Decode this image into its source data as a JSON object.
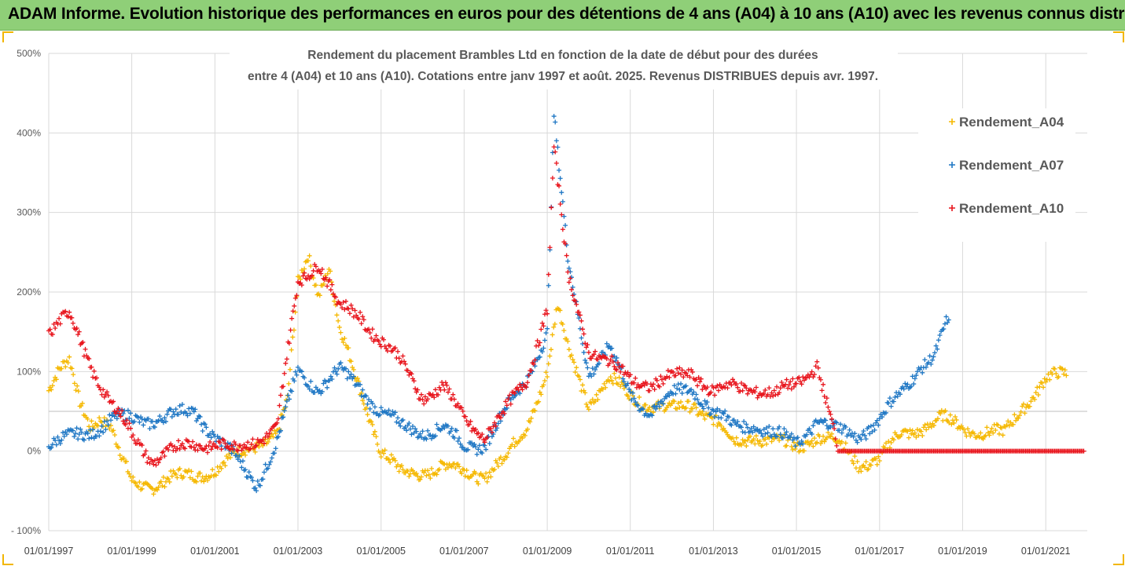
{
  "banner": {
    "title": "ADAM Informe. Evolution historique des performances en euros pour des détentions de 4 ans (A04) à 10 ans (A10) avec les revenus connus distribués",
    "background": "#8fcf78"
  },
  "chart_data": {
    "type": "scatter",
    "title_line1": "Rendement du placement Brambles Ltd en fonction de la date de début pour des durées",
    "title_line2": "entre 4 (A04) et 10 ans (A10). Cotations entre janv 1997 et août. 2025. Revenus DISTRIBUES depuis avr. 1997.",
    "xlabel": "",
    "ylabel": "",
    "x_axis_type": "date",
    "xlim": [
      "1997-01-01",
      "2022-01-01"
    ],
    "ylim": [
      -100,
      500
    ],
    "y_unit": "%",
    "y_ticks": [
      "500%",
      "400%",
      "300%",
      "200%",
      "100%",
      "0%",
      "- 100%"
    ],
    "x_ticks": [
      "01/01/1997",
      "01/01/1999",
      "01/01/2001",
      "01/01/2003",
      "01/01/2005",
      "01/01/2007",
      "01/01/2009",
      "01/01/2011",
      "01/01/2013",
      "01/01/2015",
      "01/01/2017",
      "01/01/2019",
      "01/01/2021"
    ],
    "reference_line_y": 50,
    "grid": {
      "vertical": true,
      "horizontal": true
    },
    "legend_position": "right",
    "marker": "plus",
    "series": [
      {
        "name": "Rendement_A04",
        "color": "#f5b800",
        "points": [
          [
            "1997-01-01",
            80
          ],
          [
            "1997-04-01",
            100
          ],
          [
            "1997-07-01",
            110
          ],
          [
            "1997-10-01",
            60
          ],
          [
            "1998-01-01",
            35
          ],
          [
            "1998-04-01",
            45
          ],
          [
            "1998-07-01",
            30
          ],
          [
            "1998-10-01",
            -10
          ],
          [
            "1999-01-01",
            -40
          ],
          [
            "1999-07-01",
            -42
          ],
          [
            "2000-01-01",
            -35
          ],
          [
            "2000-07-01",
            -30
          ],
          [
            "2001-01-01",
            -22
          ],
          [
            "2001-07-01",
            -8
          ],
          [
            "2002-01-01",
            10
          ],
          [
            "2002-07-01",
            20
          ],
          [
            "2002-10-01",
            60
          ],
          [
            "2003-01-01",
            210
          ],
          [
            "2003-04-01",
            250
          ],
          [
            "2003-07-01",
            200
          ],
          [
            "2003-10-01",
            230
          ],
          [
            "2004-01-01",
            150
          ],
          [
            "2004-07-01",
            80
          ],
          [
            "2005-01-01",
            0
          ],
          [
            "2005-07-01",
            -30
          ],
          [
            "2006-01-01",
            -25
          ],
          [
            "2006-07-01",
            -20
          ],
          [
            "2007-01-01",
            -25
          ],
          [
            "2007-07-01",
            -30
          ],
          [
            "2008-01-01",
            -10
          ],
          [
            "2008-07-01",
            30
          ],
          [
            "2009-01-01",
            100
          ],
          [
            "2009-04-01",
            180
          ],
          [
            "2009-07-01",
            130
          ],
          [
            "2010-01-01",
            60
          ],
          [
            "2010-07-01",
            90
          ],
          [
            "2011-01-01",
            70
          ],
          [
            "2011-07-01",
            60
          ],
          [
            "2012-01-01",
            50
          ],
          [
            "2012-07-01",
            60
          ],
          [
            "2013-01-01",
            40
          ],
          [
            "2013-07-01",
            10
          ],
          [
            "2014-01-01",
            20
          ],
          [
            "2014-07-01",
            10
          ],
          [
            "2015-01-01",
            5
          ],
          [
            "2015-07-01",
            20
          ],
          [
            "2016-01-01",
            10
          ],
          [
            "2016-07-01",
            -15
          ],
          [
            "2017-01-01",
            -10
          ],
          [
            "2017-07-01",
            20
          ],
          [
            "2018-01-01",
            30
          ],
          [
            "2018-07-01",
            40
          ],
          [
            "2019-01-01",
            30
          ],
          [
            "2019-07-01",
            25
          ],
          [
            "2020-01-01",
            20
          ],
          [
            "2020-07-01",
            60
          ],
          [
            "2021-01-01",
            90
          ],
          [
            "2021-07-01",
            95
          ]
        ]
      },
      {
        "name": "Rendement_A07",
        "color": "#1f77c4",
        "points": [
          [
            "1997-01-01",
            10
          ],
          [
            "1997-07-01",
            15
          ],
          [
            "1998-01-01",
            25
          ],
          [
            "1998-07-01",
            40
          ],
          [
            "1999-01-01",
            40
          ],
          [
            "1999-07-01",
            40
          ],
          [
            "2000-01-01",
            45
          ],
          [
            "2000-07-01",
            50
          ],
          [
            "2001-01-01",
            20
          ],
          [
            "2001-07-01",
            -10
          ],
          [
            "2002-01-01",
            -40
          ],
          [
            "2002-07-01",
            10
          ],
          [
            "2003-01-01",
            100
          ],
          [
            "2003-07-01",
            80
          ],
          [
            "2004-01-01",
            100
          ],
          [
            "2004-07-01",
            80
          ],
          [
            "2005-01-01",
            50
          ],
          [
            "2005-07-01",
            30
          ],
          [
            "2006-01-01",
            25
          ],
          [
            "2006-07-01",
            30
          ],
          [
            "2007-01-01",
            5
          ],
          [
            "2007-07-01",
            10
          ],
          [
            "2008-01-01",
            50
          ],
          [
            "2008-07-01",
            90
          ],
          [
            "2009-01-01",
            150
          ],
          [
            "2009-03-01",
            420
          ],
          [
            "2009-07-01",
            240
          ],
          [
            "2010-01-01",
            100
          ],
          [
            "2010-07-01",
            130
          ],
          [
            "2011-01-01",
            70
          ],
          [
            "2011-07-01",
            50
          ],
          [
            "2012-01-01",
            70
          ],
          [
            "2012-07-01",
            80
          ],
          [
            "2013-01-01",
            50
          ],
          [
            "2013-07-01",
            30
          ],
          [
            "2014-01-01",
            35
          ],
          [
            "2014-07-01",
            20
          ],
          [
            "2015-01-01",
            10
          ],
          [
            "2015-07-01",
            40
          ],
          [
            "2016-01-01",
            25
          ],
          [
            "2016-07-01",
            20
          ],
          [
            "2017-01-01",
            40
          ],
          [
            "2017-07-01",
            70
          ],
          [
            "2018-01-01",
            110
          ],
          [
            "2018-05-01",
            120
          ],
          [
            "2018-09-01",
            165
          ]
        ]
      },
      {
        "name": "Rendement_A10",
        "color": "#e8141c",
        "points": [
          [
            "1997-01-01",
            150
          ],
          [
            "1997-07-01",
            170
          ],
          [
            "1998-01-01",
            110
          ],
          [
            "1998-07-01",
            60
          ],
          [
            "1999-01-01",
            20
          ],
          [
            "1999-07-01",
            -10
          ],
          [
            "2000-01-01",
            0
          ],
          [
            "2000-07-01",
            10
          ],
          [
            "2001-01-01",
            10
          ],
          [
            "2001-07-01",
            0
          ],
          [
            "2002-01-01",
            15
          ],
          [
            "2002-07-01",
            30
          ],
          [
            "2003-01-01",
            210
          ],
          [
            "2003-07-01",
            240
          ],
          [
            "2004-01-01",
            180
          ],
          [
            "2004-07-01",
            170
          ],
          [
            "2005-01-01",
            140
          ],
          [
            "2005-07-01",
            110
          ],
          [
            "2006-01-01",
            70
          ],
          [
            "2006-07-01",
            80
          ],
          [
            "2007-01-01",
            40
          ],
          [
            "2007-07-01",
            20
          ],
          [
            "2008-01-01",
            50
          ],
          [
            "2008-07-01",
            90
          ],
          [
            "2009-01-01",
            180
          ],
          [
            "2009-03-01",
            380
          ],
          [
            "2009-07-01",
            220
          ],
          [
            "2010-01-01",
            130
          ],
          [
            "2010-07-01",
            110
          ],
          [
            "2011-01-01",
            90
          ],
          [
            "2011-07-01",
            85
          ],
          [
            "2012-01-01",
            90
          ],
          [
            "2012-07-01",
            100
          ],
          [
            "2013-01-01",
            75
          ],
          [
            "2013-07-01",
            80
          ],
          [
            "2014-01-01",
            80
          ],
          [
            "2014-07-01",
            70
          ],
          [
            "2015-01-01",
            85
          ],
          [
            "2015-07-01",
            110
          ],
          [
            "2016-01-01",
            0
          ],
          [
            "2018-01-01",
            0
          ],
          [
            "2020-01-01",
            0
          ],
          [
            "2021-12-01",
            0
          ]
        ]
      }
    ]
  }
}
